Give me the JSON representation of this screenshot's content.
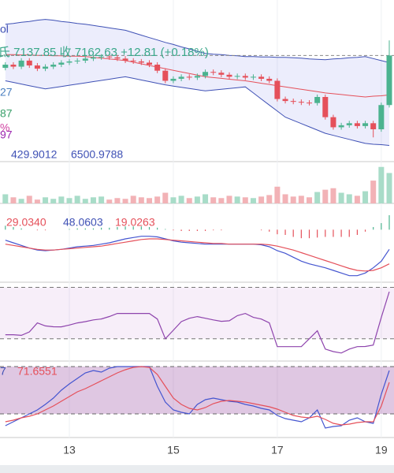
{
  "chart_data": {
    "type": "candlestick",
    "series_label": "ol",
    "quote": "氐 7137.85 收 7162.63 +12.81 (+0.18%)",
    "side_labels": [
      {
        "text": "27",
        "color": "#4a7fc0"
      },
      {
        "text": "87",
        "color": "#3aa06a"
      },
      {
        "text": "%",
        "color": "#d040a0"
      },
      {
        "text": "97",
        "color": "#9c27b0"
      },
      {
        "text": "429.9012",
        "color": "#3f51b5"
      },
      {
        "text": "6500.9788",
        "color": "#3f51b5"
      }
    ],
    "categories": [
      null,
      null,
      null,
      null,
      null,
      null,
      null,
      null,
      "13",
      null,
      null,
      null,
      null,
      null,
      null,
      null,
      null,
      null,
      null,
      null,
      null,
      "15",
      null,
      null,
      null,
      null,
      null,
      null,
      null,
      null,
      null,
      null,
      null,
      null,
      "17",
      null,
      null,
      null,
      null,
      null,
      null,
      null,
      null,
      null,
      null,
      null,
      null,
      "19",
      null
    ],
    "up_color": "#4bb38f",
    "down_color": "#e5505a",
    "price": {
      "ylim": [
        6900,
        7300
      ],
      "candles": [
        [
          7132,
          7146,
          7126,
          7140
        ],
        [
          7140,
          7146,
          7129,
          7135
        ],
        [
          7135,
          7156,
          7129,
          7150
        ],
        [
          7150,
          7156,
          7132,
          7138
        ],
        [
          7138,
          7144,
          7124,
          7130
        ],
        [
          7130,
          7141,
          7124,
          7135
        ],
        [
          7135,
          7146,
          7129,
          7140
        ],
        [
          7140,
          7151,
          7134,
          7145
        ],
        [
          7145,
          7154,
          7139,
          7148
        ],
        [
          7148,
          7156,
          7142,
          7150
        ],
        [
          7150,
          7161,
          7144,
          7155
        ],
        [
          7155,
          7164,
          7149,
          7158
        ],
        [
          7158,
          7166,
          7152,
          7160
        ],
        [
          7160,
          7166,
          7152,
          7158
        ],
        [
          7158,
          7164,
          7149,
          7155
        ],
        [
          7155,
          7161,
          7144,
          7150
        ],
        [
          7150,
          7156,
          7142,
          7148
        ],
        [
          7148,
          7154,
          7139,
          7145
        ],
        [
          7145,
          7151,
          7134,
          7140
        ],
        [
          7140,
          7146,
          7119,
          7125
        ],
        [
          7125,
          7131,
          7094,
          7100
        ],
        [
          7100,
          7111,
          7094,
          7105
        ],
        [
          7105,
          7116,
          7099,
          7110
        ],
        [
          7110,
          7116,
          7102,
          7108
        ],
        [
          7108,
          7118,
          7102,
          7112
        ],
        [
          7112,
          7128,
          7106,
          7122
        ],
        [
          7122,
          7128,
          7114,
          7120
        ],
        [
          7120,
          7126,
          7109,
          7115
        ],
        [
          7115,
          7121,
          7104,
          7110
        ],
        [
          7110,
          7118,
          7104,
          7112
        ],
        [
          7112,
          7118,
          7102,
          7108
        ],
        [
          7108,
          7116,
          7102,
          7110
        ],
        [
          7110,
          7116,
          7099,
          7105
        ],
        [
          7105,
          7111,
          7094,
          7100
        ],
        [
          7100,
          7106,
          7049,
          7055
        ],
        [
          7055,
          7061,
          7044,
          7050
        ],
        [
          7050,
          7056,
          7042,
          7048
        ],
        [
          7048,
          7054,
          7040,
          7046
        ],
        [
          7046,
          7052,
          7039,
          7045
        ],
        [
          7045,
          7066,
          7039,
          7060
        ],
        [
          7060,
          7066,
          7004,
          7010
        ],
        [
          7010,
          7016,
          6979,
          6985
        ],
        [
          6985,
          6996,
          6979,
          6990
        ],
        [
          6990,
          7001,
          6984,
          6995
        ],
        [
          6995,
          7001,
          6982,
          6988
        ],
        [
          6988,
          7001,
          6982,
          6995
        ],
        [
          6995,
          7001,
          6960,
          6980
        ],
        [
          6980,
          7046,
          6974,
          7040
        ],
        [
          7040,
          7200,
          7034,
          7162.63
        ]
      ],
      "boll": {
        "upper": [
          7240,
          7242,
          7245,
          7247,
          7250,
          7252,
          7250,
          7247,
          7245,
          7242,
          7240,
          7237,
          7234,
          7231,
          7228,
          7225,
          7219,
          7213,
          7207,
          7201,
          7195,
          7190,
          7184,
          7179,
          7173,
          7168,
          7166,
          7165,
          7163,
          7162,
          7160,
          7160,
          7159,
          7159,
          7158,
          7158,
          7157,
          7156,
          7154,
          7153,
          7152,
          7154,
          7155,
          7157,
          7158,
          7160,
          7155,
          7150,
          7145
        ],
        "middle": [
          7165,
          7165,
          7164,
          7164,
          7163,
          7163,
          7162,
          7162,
          7161,
          7161,
          7160,
          7158,
          7156,
          7154,
          7152,
          7150,
          7146,
          7142,
          7138,
          7134,
          7130,
          7126,
          7122,
          7118,
          7114,
          7110,
          7108,
          7106,
          7104,
          7102,
          7100,
          7097,
          7094,
          7091,
          7088,
          7085,
          7082,
          7079,
          7076,
          7073,
          7070,
          7068,
          7066,
          7064,
          7062,
          7060,
          7062,
          7063,
          7065
        ],
        "lower": [
          7100,
          7096,
          7092,
          7088,
          7084,
          7080,
          7083,
          7086,
          7089,
          7092,
          7095,
          7098,
          7101,
          7104,
          7107,
          7110,
          7106,
          7102,
          7098,
          7094,
          7090,
          7087,
          7084,
          7081,
          7078,
          7075,
          7077,
          7079,
          7081,
          7083,
          7085,
          7070,
          7055,
          7040,
          7025,
          7010,
          7002,
          6994,
          6986,
          6978,
          6970,
          6965,
          6960,
          6955,
          6950,
          6945,
          6943,
          6942,
          6940
        ]
      }
    },
    "volume": {
      "ylim": [
        0,
        55
      ],
      "values": [
        12,
        8,
        6,
        10,
        5,
        8,
        6,
        9,
        7,
        10,
        6,
        8,
        9,
        5,
        7,
        6,
        10,
        8,
        7,
        9,
        14,
        8,
        10,
        7,
        9,
        12,
        8,
        7,
        10,
        9,
        8,
        7,
        9,
        11,
        22,
        12,
        9,
        10,
        8,
        15,
        18,
        20,
        14,
        12,
        10,
        16,
        30,
        48,
        40
      ]
    },
    "macd": {
      "ylim": [
        -80,
        40
      ],
      "labels": [
        {
          "text": "29.0340",
          "color": "#e5505a"
        },
        {
          "text": "48.0603",
          "color": "#3f51b5"
        },
        {
          "text": "19.0263",
          "color": "#e5505a"
        }
      ],
      "dif": [
        -16,
        -20,
        -24,
        -28,
        -31,
        -32,
        -31,
        -30,
        -28,
        -26,
        -25,
        -24,
        -22,
        -20,
        -17,
        -14,
        -12,
        -10,
        -10,
        -11,
        -14,
        -17,
        -19,
        -20,
        -21,
        -22,
        -22,
        -22,
        -22,
        -22,
        -22,
        -22,
        -23,
        -26,
        -32,
        -36,
        -42,
        -48,
        -52,
        -55,
        -58,
        -62,
        -66,
        -70,
        -70,
        -66,
        -58,
        -48,
        -30
      ],
      "dea": [
        -22,
        -24,
        -26,
        -28,
        -30,
        -31,
        -31,
        -30,
        -29,
        -28,
        -27,
        -26,
        -25,
        -23,
        -21,
        -19,
        -17,
        -15,
        -14,
        -14,
        -15,
        -16,
        -17,
        -18,
        -19,
        -20,
        -21,
        -21,
        -22,
        -22,
        -22,
        -22,
        -22,
        -23,
        -25,
        -28,
        -31,
        -35,
        -39,
        -43,
        -47,
        -51,
        -55,
        -59,
        -62,
        -63,
        -62,
        -58,
        -52
      ],
      "hist": [
        6,
        4,
        2,
        0,
        -1,
        -1,
        0,
        0,
        1,
        2,
        2,
        2,
        3,
        3,
        4,
        5,
        5,
        5,
        4,
        3,
        1,
        -1,
        -2,
        -2,
        -2,
        -2,
        -1,
        -1,
        0,
        0,
        0,
        0,
        -1,
        -3,
        -7,
        -8,
        -11,
        -13,
        -13,
        -12,
        -11,
        -11,
        -11,
        -11,
        -8,
        -3,
        4,
        10,
        22
      ]
    },
    "rsi": {
      "ylim": [
        -6,
        86
      ],
      "bands": [
        20,
        80
      ],
      "values": [
        24.7,
        24.7,
        24,
        28,
        38.5,
        35,
        34,
        33.9,
        36,
        38.5,
        40,
        42,
        43.1,
        46,
        49.6,
        49.6,
        49.6,
        49.6,
        49.6,
        43,
        20,
        30,
        40,
        44,
        45.9,
        44,
        42,
        40.4,
        41,
        47,
        49.6,
        45,
        43,
        38.5,
        10.8,
        10.8,
        10.8,
        10.8,
        20,
        29.3,
        8,
        5,
        3.4,
        8,
        10.8,
        11,
        12.7,
        45,
        75
      ]
    },
    "kdj": {
      "ylim": [
        -10,
        87
      ],
      "bands": [
        20,
        80
      ],
      "labels": [
        {
          "text": "7",
          "color": "#3f51b5"
        },
        {
          "text": "71.6551",
          "color": "#e5505a"
        }
      ],
      "k": [
        5,
        10,
        15,
        20,
        25,
        32,
        40,
        50,
        58,
        65,
        72,
        75,
        73,
        78,
        80,
        80,
        80,
        80,
        80,
        55,
        35,
        25,
        22,
        20,
        32,
        38,
        40,
        38,
        36,
        35,
        32,
        30,
        27,
        25,
        18,
        14,
        12,
        10,
        15,
        25,
        2,
        4,
        5,
        12,
        15,
        10,
        8,
        45,
        75
      ],
      "d": [
        10,
        12,
        15,
        17,
        20,
        25,
        30,
        36,
        42,
        48,
        52,
        57,
        62,
        67,
        72,
        76,
        79,
        80,
        79,
        70,
        55,
        40,
        32,
        27,
        25,
        28,
        33,
        36,
        37,
        36,
        35,
        33,
        31,
        29,
        26,
        22,
        18,
        16,
        15,
        17,
        13,
        8,
        6,
        7,
        9,
        10,
        10,
        30,
        60
      ]
    }
  }
}
